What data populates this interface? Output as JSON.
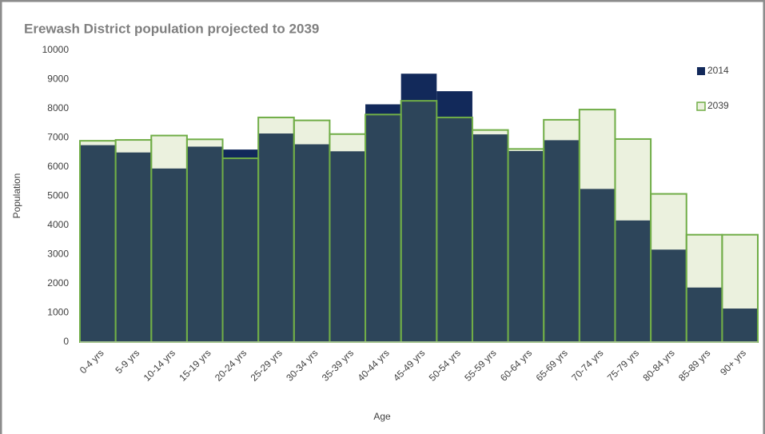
{
  "chart_data": {
    "type": "bar",
    "title": "Erewash District population projected to 2039",
    "x_label": "Age",
    "y_label": "Population",
    "categories": [
      "0-4 yrs",
      "5-9 yrs",
      "10-14 yrs",
      "15-19 yrs",
      "20-24 yrs",
      "25-29 yrs",
      "30-34 yrs",
      "35-39 yrs",
      "40-44 yrs",
      "45-49 yrs",
      "50-54 yrs",
      "55-59 yrs",
      "60-64 yrs",
      "65-69 yrs",
      "70-74 yrs",
      "75-79 yrs",
      "80-84 yrs",
      "85-89 yrs",
      "90+ yrs"
    ],
    "series": [
      {
        "name": "2014",
        "color": "#12295a",
        "values": [
          6750,
          6500,
          5950,
          6700,
          6600,
          7150,
          6780,
          6540,
          8150,
          9200,
          8600,
          7120,
          6550,
          6920,
          5250,
          4170,
          3170,
          1870,
          1150
        ]
      },
      {
        "name": "2039",
        "color": "#70ad47",
        "values": [
          6900,
          6930,
          7080,
          6950,
          6300,
          7700,
          7600,
          7130,
          7800,
          8270,
          7700,
          7270,
          6620,
          7620,
          7970,
          6960,
          5080,
          3680,
          3680
        ]
      }
    ],
    "ylim": [
      0,
      10000
    ],
    "yticks": [
      0,
      1000,
      2000,
      3000,
      4000,
      5000,
      6000,
      7000,
      8000,
      9000,
      10000
    ],
    "grid": false,
    "legend": "right"
  }
}
